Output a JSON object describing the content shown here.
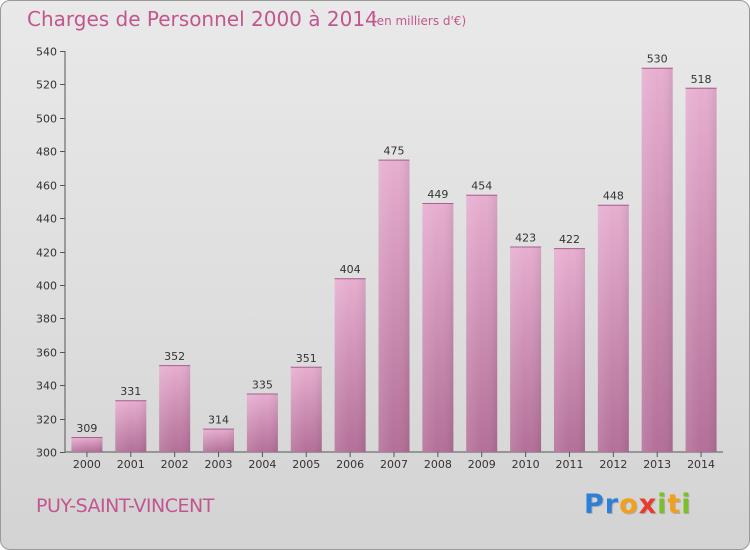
{
  "header": {
    "title": "Charges de Personnel 2000 à 2014",
    "subtitle": "(en milliers d'€)"
  },
  "footer": {
    "commune": "PUY-SAINT-VINCENT",
    "logo_text": "Proxiti"
  },
  "colors": {
    "title": "#c2568f",
    "bar_light": "#e7aed0",
    "bar_dark": "#b36f98",
    "background": "#e2e2e2",
    "logo_letters": [
      "#2e7fd6",
      "#2e7fd6",
      "#f0a01c",
      "#e83a2e",
      "#7bbf2a",
      "#f0a01c",
      "#7bbf2a"
    ]
  },
  "chart_data": {
    "type": "bar",
    "title": "Charges de Personnel 2000 à 2014",
    "subtitle": "(en milliers d'€)",
    "xlabel": "",
    "ylabel": "",
    "categories": [
      "2000",
      "2001",
      "2002",
      "2003",
      "2004",
      "2005",
      "2006",
      "2007",
      "2008",
      "2009",
      "2010",
      "2011",
      "2012",
      "2013",
      "2014"
    ],
    "values": [
      309,
      331,
      352,
      314,
      335,
      351,
      404,
      475,
      449,
      454,
      423,
      422,
      448,
      530,
      518
    ],
    "ylim": [
      300,
      540
    ],
    "yticks": [
      300,
      320,
      340,
      360,
      380,
      400,
      420,
      440,
      460,
      480,
      500,
      520,
      540
    ],
    "grid": false,
    "legend": "none",
    "data_labels": true
  }
}
